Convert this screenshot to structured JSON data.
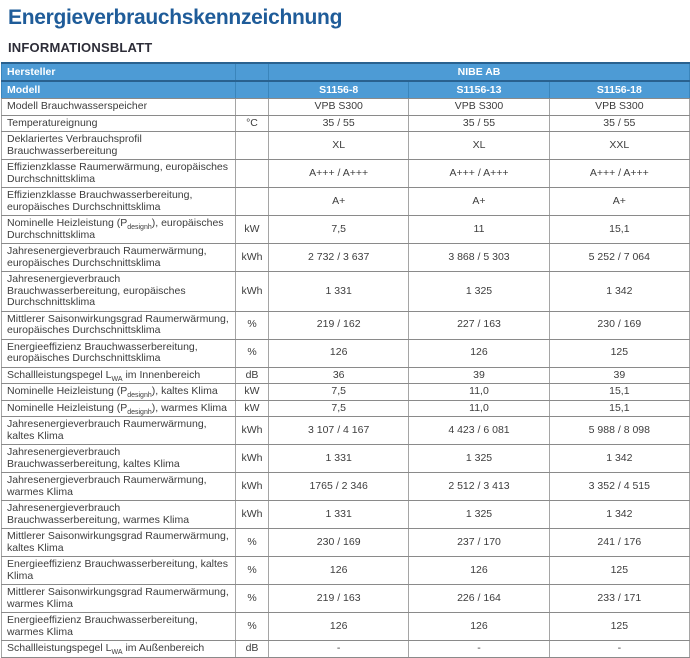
{
  "page": {
    "title": "Energieverbrauchskennzeichnung",
    "subtitle": "INFORMATIONSBLATT"
  },
  "colors": {
    "header_blue": "#4d9bd5",
    "header_dark_border": "#29618f",
    "title_blue": "#1f5c99",
    "subtitle_dark": "#2d2d38",
    "body_text": "#3d3d3d"
  },
  "table": {
    "header": {
      "manufacturer_label": "Hersteller",
      "manufacturer_value": "NIBE AB",
      "model_label": "Modell",
      "models": [
        "S1156-8",
        "S1156-13",
        "S1156-18"
      ]
    },
    "rows": [
      {
        "label": "Modell Brauchwasserspeicher",
        "unit": "",
        "values": [
          "VPB S300",
          "VPB S300",
          "VPB S300"
        ]
      },
      {
        "label": "Temperatureignung",
        "unit": "°C",
        "values": [
          "35 / 55",
          "35 / 55",
          "35 / 55"
        ]
      },
      {
        "label": "Deklariertes Verbrauchsprofil Brauchwasserbereitung",
        "unit": "",
        "values": [
          "XL",
          "XL",
          "XXL"
        ]
      },
      {
        "label": "Effizienzklasse Raumerwärmung, europäisches Durchschnittsklima",
        "unit": "",
        "values": [
          "A+++ / A+++",
          "A+++ / A+++",
          "A+++ / A+++"
        ]
      },
      {
        "label": "Effizienzklasse Brauchwasserbereitung, europäisches Durchschnittsklima",
        "unit": "",
        "values": [
          "A+",
          "A+",
          "A+"
        ]
      },
      {
        "label_pre": "Nominelle Heizleistung (P",
        "label_sub": "designh",
        "label_post": "), europäisches Durchschnittsklima",
        "unit": "kW",
        "values": [
          "7,5",
          "11",
          "15,1"
        ]
      },
      {
        "label": "Jahresenergieverbrauch Raumerwärmung, europäisches Durchschnittsklima",
        "unit": "kWh",
        "values": [
          "2 732 / 3 637",
          "3 868 / 5 303",
          "5 252 / 7 064"
        ]
      },
      {
        "label": "Jahresenergieverbrauch Brauchwasserbereitung, europäisches Durchschnittsklima",
        "unit": "kWh",
        "values": [
          "1 331",
          "1 325",
          "1 342"
        ]
      },
      {
        "label": "Mittlerer Saisonwirkungsgrad Raumerwärmung, europäisches Durchschnittsklima",
        "unit": "%",
        "values": [
          "219 / 162",
          "227 / 163",
          "230 / 169"
        ]
      },
      {
        "label": "Energieeffizienz Brauchwasserbereitung, europäisches Durchschnittsklima",
        "unit": "%",
        "values": [
          "126",
          "126",
          "125"
        ]
      },
      {
        "label_pre": "Schallleistungspegel L",
        "label_sub": "WA",
        "label_post": " im Innenbereich",
        "unit": "dB",
        "values": [
          "36",
          "39",
          "39"
        ]
      },
      {
        "label_pre": "Nominelle Heizleistung (P",
        "label_sub": "designh",
        "label_post": "), kaltes Klima",
        "unit": "kW",
        "values": [
          "7,5",
          "11,0",
          "15,1"
        ]
      },
      {
        "label_pre": "Nominelle Heizleistung (P",
        "label_sub": "designh",
        "label_post": "), warmes Klima",
        "unit": "kW",
        "values": [
          "7,5",
          "11,0",
          "15,1"
        ]
      },
      {
        "label": "Jahresenergieverbrauch Raumerwärmung, kaltes Klima",
        "unit": "kWh",
        "values": [
          "3 107 / 4 167",
          "4 423 / 6 081",
          "5 988 / 8 098"
        ]
      },
      {
        "label": "Jahresenergieverbrauch Brauchwasserbereitung, kaltes Klima",
        "unit": "kWh",
        "values": [
          "1 331",
          "1 325",
          "1 342"
        ]
      },
      {
        "label": "Jahresenergieverbrauch Raumerwärmung, warmes Klima",
        "unit": "kWh",
        "values": [
          "1765 / 2 346",
          "2 512 / 3 413",
          "3 352 / 4 515"
        ]
      },
      {
        "label": "Jahresenergieverbrauch Brauchwasserbereitung, warmes Klima",
        "unit": "kWh",
        "values": [
          "1 331",
          "1 325",
          "1 342"
        ]
      },
      {
        "label": "Mittlerer Saisonwirkungsgrad Raumerwärmung, kaltes Klima",
        "unit": "%",
        "values": [
          "230 / 169",
          "237 / 170",
          "241 / 176"
        ]
      },
      {
        "label": "Energieeffizienz Brauchwasserbereitung, kaltes Klima",
        "unit": "%",
        "values": [
          "126",
          "126",
          "125"
        ]
      },
      {
        "label": "Mittlerer Saisonwirkungsgrad Raumerwärmung, warmes Klima",
        "unit": "%",
        "values": [
          "219 / 163",
          "226 / 164",
          "233 / 171"
        ]
      },
      {
        "label": "Energieeffizienz Brauchwasserbereitung, warmes Klima",
        "unit": "%",
        "values": [
          "126",
          "126",
          "125"
        ]
      },
      {
        "label_pre": "Schallleistungspegel L",
        "label_sub": "WA",
        "label_post": " im Außenbereich",
        "unit": "dB",
        "values": [
          "-",
          "-",
          "-"
        ]
      }
    ]
  }
}
